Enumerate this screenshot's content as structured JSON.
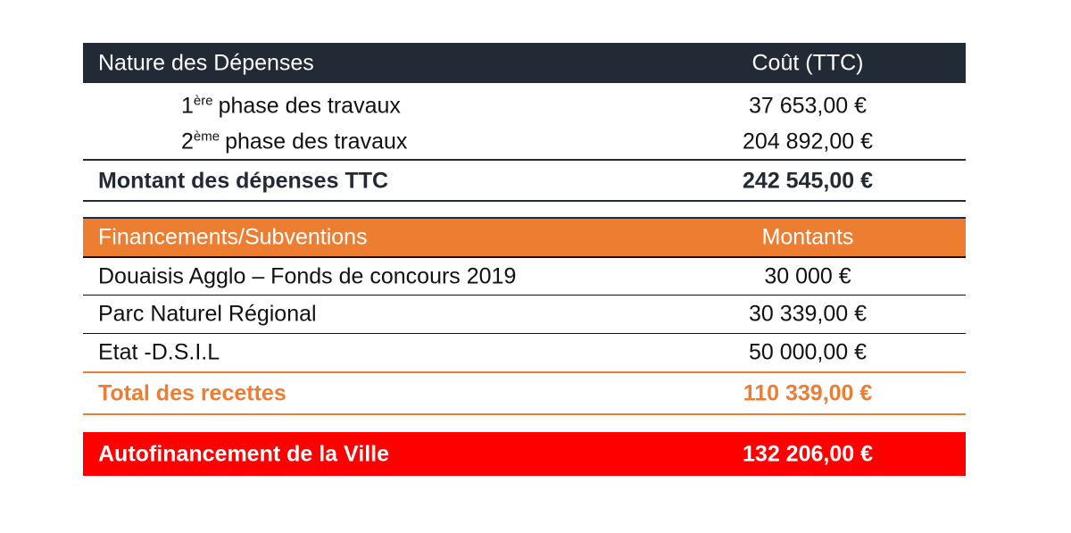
{
  "expenses": {
    "header": [
      "Nature des Dépenses",
      "Coût (TTC)"
    ],
    "rows": [
      {
        "ordinal": "1",
        "suffix": "ère",
        "label": "phase des travaux",
        "amount": "37 653,00 €"
      },
      {
        "ordinal": "2",
        "suffix": "ème",
        "label": "phase des travaux",
        "amount": "204 892,00 €"
      }
    ],
    "total": [
      "Montant des dépenses TTC",
      "242 545,00 €"
    ]
  },
  "funding": {
    "header": [
      "Financements/Subventions",
      "Montants"
    ],
    "rows": [
      [
        "Douaisis Agglo – Fonds de concours 2019",
        "30 000 €"
      ],
      [
        "Parc Naturel Régional",
        "30 339,00 €"
      ],
      [
        "Etat -D.S.I.L",
        "50 000,00 €"
      ]
    ],
    "total": [
      "Total des recettes",
      "110 339,00 €"
    ]
  },
  "self_financing": [
    "Autofinancement de la Ville",
    "132 206,00 €"
  ]
}
